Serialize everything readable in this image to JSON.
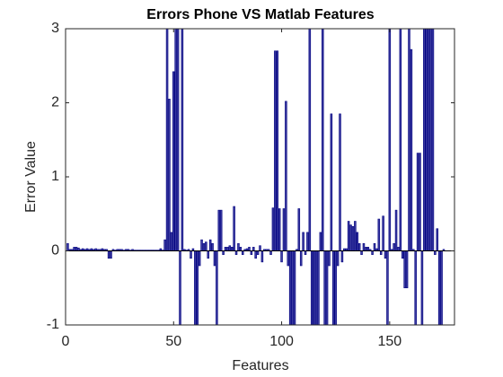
{
  "chart_data": {
    "type": "bar",
    "title": "Errors Phone VS Matlab Features",
    "xlabel": "Features",
    "ylabel": "Error Value",
    "color": "#3c3ca0",
    "edgecolor": "#000080",
    "xlim": [
      0,
      180
    ],
    "xticks": [
      0,
      50,
      100,
      150
    ],
    "ylim": [
      -1,
      3
    ],
    "yticks": [
      -1,
      0,
      1,
      2,
      3
    ],
    "x": [
      1,
      2,
      3,
      4,
      5,
      6,
      7,
      8,
      9,
      10,
      11,
      12,
      13,
      14,
      15,
      16,
      17,
      18,
      19,
      20,
      21,
      22,
      23,
      24,
      25,
      26,
      27,
      28,
      29,
      30,
      31,
      32,
      33,
      34,
      35,
      36,
      37,
      38,
      39,
      40,
      41,
      42,
      43,
      44,
      45,
      46,
      47,
      48,
      49,
      50,
      51,
      52,
      53,
      54,
      55,
      56,
      57,
      58,
      59,
      60,
      61,
      62,
      63,
      64,
      65,
      66,
      67,
      68,
      69,
      70,
      71,
      72,
      73,
      74,
      75,
      76,
      77,
      78,
      79,
      80,
      81,
      82,
      83,
      84,
      85,
      86,
      87,
      88,
      89,
      90,
      91,
      92,
      93,
      94,
      95,
      96,
      97,
      98,
      99,
      100,
      101,
      102,
      103,
      104,
      105,
      106,
      107,
      108,
      109,
      110,
      111,
      112,
      113,
      114,
      115,
      116,
      117,
      118,
      119,
      120,
      121,
      122,
      123,
      124,
      125,
      126,
      127,
      128,
      129,
      130,
      131,
      132,
      133,
      134,
      135,
      136,
      137,
      138,
      139,
      140,
      141,
      142,
      143,
      144,
      145,
      146,
      147,
      148,
      149,
      150,
      151,
      152,
      153,
      154,
      155,
      156,
      157,
      158,
      159,
      160,
      161,
      162,
      163,
      164,
      165,
      166,
      167,
      168,
      169,
      170,
      171,
      172,
      173,
      174,
      175
    ],
    "values": [
      0.1,
      0.02,
      0.02,
      0.05,
      0.05,
      0.04,
      0.02,
      0.03,
      0.02,
      0.03,
      0.02,
      0.03,
      0.02,
      0.03,
      0.02,
      0.02,
      0.03,
      0.02,
      0.02,
      -0.1,
      -0.1,
      0.02,
      0.01,
      0.02,
      0.02,
      0.02,
      0.01,
      0.02,
      0.02,
      0.01,
      0.02,
      0.01,
      0.01,
      0.01,
      0.01,
      0.01,
      0.01,
      0.01,
      0.01,
      0.01,
      0.01,
      0.01,
      0.01,
      0.03,
      0.01,
      0.15,
      3,
      2.05,
      0.25,
      2.42,
      3,
      3,
      -1,
      3,
      0.02,
      0.01,
      0.02,
      -0.1,
      0.03,
      -1,
      -1,
      -0.2,
      0.15,
      0.1,
      0.12,
      -0.1,
      0.15,
      0.1,
      -0.2,
      -1,
      0.55,
      0.55,
      -0.05,
      0.05,
      0.05,
      0.07,
      0.05,
      0.6,
      -0.05,
      0.1,
      0.05,
      -0.05,
      0.02,
      0.03,
      0.05,
      -0.05,
      0.05,
      -0.1,
      -0.05,
      0.07,
      -0.15,
      0.02,
      0.02,
      0.02,
      -0.05,
      0.58,
      2.7,
      2.7,
      0.57,
      -0.15,
      0.57,
      2.02,
      -0.2,
      -1,
      -1,
      -1,
      0.02,
      0.57,
      -0.2,
      0.25,
      -0.05,
      0.25,
      3,
      -1,
      -1,
      -1,
      -1,
      0.25,
      3,
      -1,
      -1,
      -0.2,
      1.85,
      -1,
      -1,
      -0.2,
      1.85,
      -0.15,
      0.03,
      0.03,
      0.4,
      0.35,
      0.33,
      0.4,
      0.25,
      0.1,
      -0.05,
      0.1,
      0.05,
      0.05,
      0.02,
      -0.05,
      0.1,
      0.03,
      0.43,
      -0.05,
      0.47,
      -0.1,
      -1,
      3,
      0.02,
      0.1,
      0.55,
      0.05,
      3,
      -0.1,
      -0.5,
      -0.5,
      3,
      2.72,
      0.02,
      -1,
      1.32,
      1.32,
      -1,
      3,
      3,
      3,
      3,
      3,
      -0.05,
      0.3,
      -1,
      -1,
      0.02
    ]
  }
}
